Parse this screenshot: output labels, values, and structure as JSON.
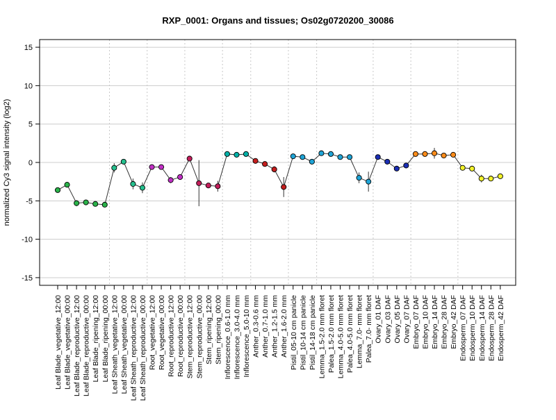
{
  "chart_data": {
    "type": "line",
    "title": "RXP_0001: Organs and tissues; Os02g0720200_30086",
    "xlabel": "",
    "ylabel": "normalized Cy3 signal intensity (log2)",
    "ylim": [
      -16,
      16
    ],
    "yticks": [
      -15,
      -10,
      -5,
      0,
      5,
      10,
      15
    ],
    "grid": true,
    "legend": "none",
    "categories": [
      "Leaf Blade_vegetative_12:00",
      "Leaf Blade_vegetative_00:00",
      "Leaf Blade_reproductive_12:00",
      "Leaf Blade_reproductive_00:00",
      "Leaf Blade_ripening_12:00",
      "Leaf Blade_ripening_00:00",
      "Leaf Sheath_vegetative_12:00",
      "Leaf Sheath_vegetative_00:00",
      "Leaf Sheath_reproductive_12:00",
      "Leaf Sheath_reproductive_00:00",
      "Root_vegetative_12:00",
      "Root_vegetative_00:00",
      "Root_reproductive_12:00",
      "Root_reproductive_00:00",
      "Stem_reproductive_12:00",
      "Stem_reproductive_00:00",
      "Stem_ripening_12:00",
      "Stem_ripening_00:00",
      "Inflorescence_0.6-1.0 mm",
      "Inflorescence_3.0-4.0 mm",
      "Inflorescence_5.0-10 mm",
      "Anther_0.3-0.6 mm",
      "Anther_0.7-1.0 mm",
      "Anther_1.2-1.5 mm",
      "Anther_1.6-2.0 mm",
      "Pistil_05-10 cm panicle",
      "Pistil_10-14 cm panicle",
      "Pistil_14-18 cm panicle",
      "Lemma_1.5-2.0 mm floret",
      "Palea_1.5-2.0 mm floret",
      "Lemma_4.0-5.0 mm floret",
      "Palea_4.0-5.0 mm floret",
      "Lemma_7.0- mm floret",
      "Palea_7.0- mm floret",
      "Ovary_01 DAF",
      "Ovary_03 DAF",
      "Ovary_05 DAF",
      "Ovary_07 DAF",
      "Embryo_07 DAF",
      "Embryo_10 DAF",
      "Embryo_14 DAF",
      "Embryo_28 DAF",
      "Embryo_42 DAF",
      "Endosperm_07 DAF",
      "Endosperm_10 DAF",
      "Endosperm_14 DAF",
      "Endosperm_28 DAF",
      "Endosperm_42 DAF"
    ],
    "values": [
      -3.6,
      -2.9,
      -5.3,
      -5.2,
      -5.4,
      -5.5,
      -0.7,
      0.1,
      -2.8,
      -3.3,
      -0.6,
      -0.6,
      -2.3,
      -1.9,
      0.5,
      -2.7,
      -3.0,
      -3.1,
      1.1,
      1.0,
      1.1,
      0.2,
      -0.2,
      -0.9,
      -3.2,
      0.8,
      0.7,
      0.1,
      1.2,
      1.1,
      0.7,
      0.7,
      -2.0,
      -2.5,
      0.7,
      0.1,
      -0.8,
      -0.4,
      1.1,
      1.1,
      1.2,
      0.9,
      1.0,
      -0.7,
      -0.8,
      -2.1,
      -2.1,
      -1.8
    ],
    "errors": [
      0.3,
      0.2,
      0.4,
      0.2,
      0.2,
      0.2,
      0.6,
      0.2,
      0.7,
      0.7,
      0.2,
      0.3,
      0.4,
      0.3,
      0.2,
      3.0,
      0.2,
      0.7,
      0.2,
      0.2,
      0.2,
      0.2,
      0.2,
      0.4,
      1.3,
      0.2,
      0.2,
      0.3,
      0.2,
      0.2,
      0.2,
      0.2,
      0.7,
      1.3,
      0.2,
      0.2,
      0.2,
      0.2,
      0.2,
      0.2,
      0.7,
      0.2,
      0.2,
      0.2,
      0.2,
      0.5,
      0.2,
      0.2
    ],
    "group_colors": [
      "#2ab34a",
      "#25c08e",
      "#c02fc4",
      "#c41e5b",
      "#00b1a8",
      "#c41e1e",
      "#1fa4d6",
      "#1a2eb4",
      "#ff8c1a",
      "#f2f22a"
    ],
    "point_group": [
      0,
      0,
      0,
      0,
      0,
      0,
      1,
      1,
      1,
      1,
      2,
      2,
      2,
      2,
      3,
      3,
      3,
      3,
      4,
      4,
      4,
      5,
      5,
      5,
      5,
      6,
      6,
      6,
      6,
      6,
      6,
      6,
      6,
      6,
      7,
      7,
      7,
      7,
      8,
      8,
      8,
      8,
      8,
      9,
      9,
      9,
      9,
      9
    ],
    "group_separators_after": [
      5,
      9,
      13,
      17,
      20,
      24,
      27,
      33,
      37,
      42
    ]
  }
}
